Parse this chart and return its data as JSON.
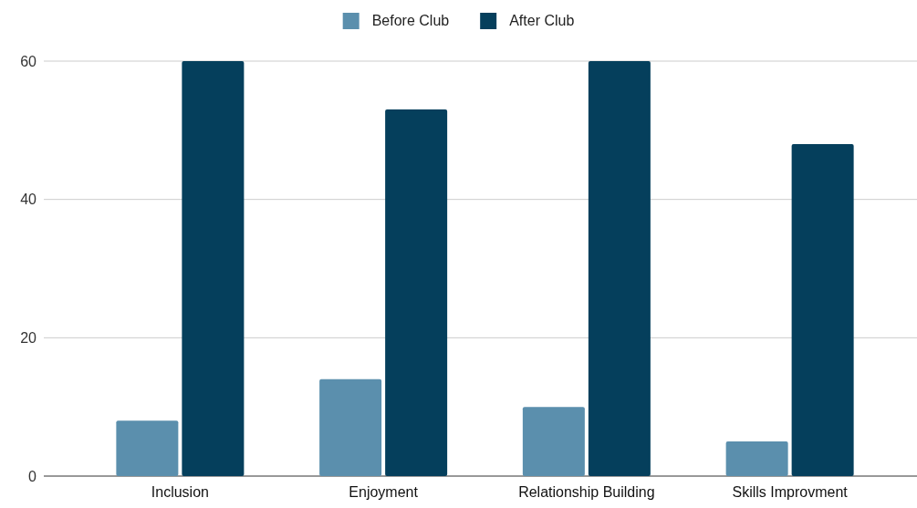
{
  "chart_data": {
    "type": "bar",
    "categories": [
      "Inclusion",
      "Enjoyment",
      "Relationship Building",
      "Skills Improvment"
    ],
    "series": [
      {
        "name": "Before Club",
        "color": "#5b8fad",
        "values": [
          8,
          14,
          10,
          5
        ]
      },
      {
        "name": "After Club",
        "color": "#053f5c",
        "values": [
          60,
          53,
          60,
          48
        ]
      }
    ],
    "ylim": [
      0,
      60
    ],
    "yticks": [
      0,
      20,
      40,
      60
    ],
    "grid": "y",
    "legend": "top"
  }
}
